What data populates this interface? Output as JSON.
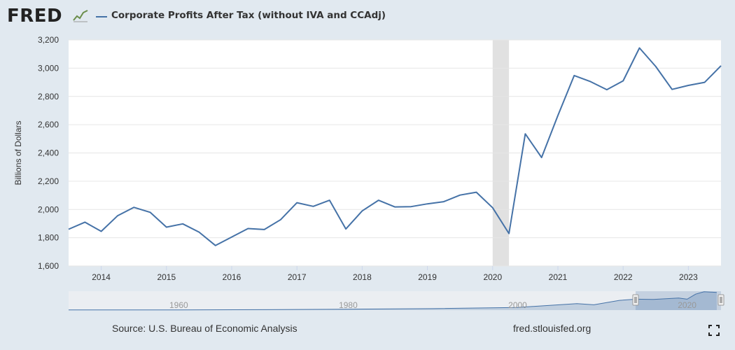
{
  "header": {
    "logo_text": "FRED",
    "logo_icon": "line-graph-icon",
    "series_title": "Corporate Profits After Tax (without IVA and CCAdj)",
    "series_color": "#4572a7"
  },
  "footer": {
    "source": "Source: U.S. Bureau of Economic Analysis",
    "site": "fred.stlouisfed.org",
    "fullscreen_icon": "fullscreen-icon"
  },
  "chart_data": {
    "type": "line",
    "title": "Corporate Profits After Tax (without IVA and CCAdj)",
    "ylabel": "Billions of Dollars",
    "xlabel": "",
    "ylim": [
      1600,
      3200
    ],
    "yticks": [
      1600,
      1800,
      2000,
      2200,
      2400,
      2600,
      2800,
      3000,
      3200
    ],
    "ytick_labels": [
      "1,600",
      "1,800",
      "2,000",
      "2,200",
      "2,400",
      "2,600",
      "2,800",
      "3,000",
      "3,200"
    ],
    "xlim": [
      2013.5,
      2023.5
    ],
    "xticks": [
      2014,
      2015,
      2016,
      2017,
      2018,
      2019,
      2020,
      2021,
      2022,
      2023
    ],
    "xtick_labels": [
      "2014",
      "2015",
      "2016",
      "2017",
      "2018",
      "2019",
      "2020",
      "2021",
      "2022",
      "2023"
    ],
    "grid": true,
    "recession": [
      2020.0,
      2020.25
    ],
    "recession_color": "#e1e1e1",
    "series": [
      {
        "name": "Corporate Profits After Tax (without IVA and CCAdj)",
        "color": "#4572a7",
        "x": [
          2013.5,
          2013.75,
          2014.0,
          2014.25,
          2014.5,
          2014.75,
          2015.0,
          2015.25,
          2015.5,
          2015.75,
          2016.0,
          2016.25,
          2016.5,
          2016.75,
          2017.0,
          2017.25,
          2017.5,
          2017.75,
          2018.0,
          2018.25,
          2018.5,
          2018.75,
          2019.0,
          2019.25,
          2019.5,
          2019.75,
          2020.0,
          2020.25,
          2020.5,
          2020.75,
          2021.0,
          2021.25,
          2021.5,
          2021.75,
          2022.0,
          2022.25,
          2022.5,
          2022.75,
          2023.0,
          2023.25,
          2023.5
        ],
        "y": [
          1860,
          1910,
          1845,
          1955,
          2015,
          1980,
          1875,
          1898,
          1840,
          1745,
          1805,
          1865,
          1858,
          1928,
          2048,
          2022,
          2065,
          1862,
          1990,
          2065,
          2018,
          2020,
          2040,
          2055,
          2102,
          2122,
          2012,
          1830,
          2535,
          2368,
          2665,
          2948,
          2905,
          2848,
          2910,
          3143,
          3012,
          2850,
          2878,
          2900,
          3017
        ]
      }
    ],
    "navigator": {
      "labels": [
        "1960",
        "1980",
        "2000",
        "2020"
      ]
    }
  }
}
